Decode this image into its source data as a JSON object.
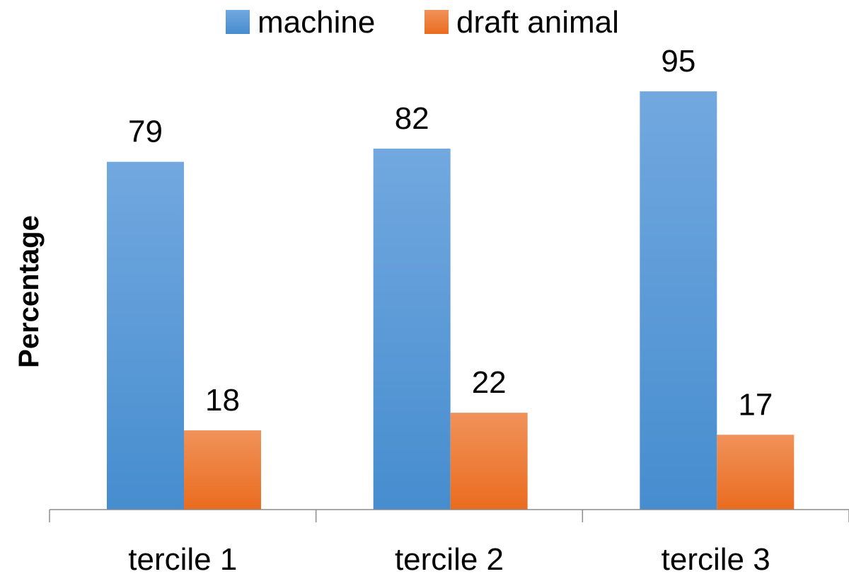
{
  "chart_data": {
    "type": "bar",
    "categories": [
      "tercile 1",
      "tercile 2",
      "tercile 3"
    ],
    "series": [
      {
        "name": "machine",
        "values": [
          79,
          82,
          95
        ],
        "color": "#5B9BD5"
      },
      {
        "name": "draft animal",
        "values": [
          18,
          22,
          17
        ],
        "color": "#ED7D31"
      }
    ],
    "xlabel": "",
    "ylabel": "Percentage",
    "ylim": [
      0,
      100
    ],
    "grid": false,
    "legend": "top",
    "data_labels": true
  }
}
